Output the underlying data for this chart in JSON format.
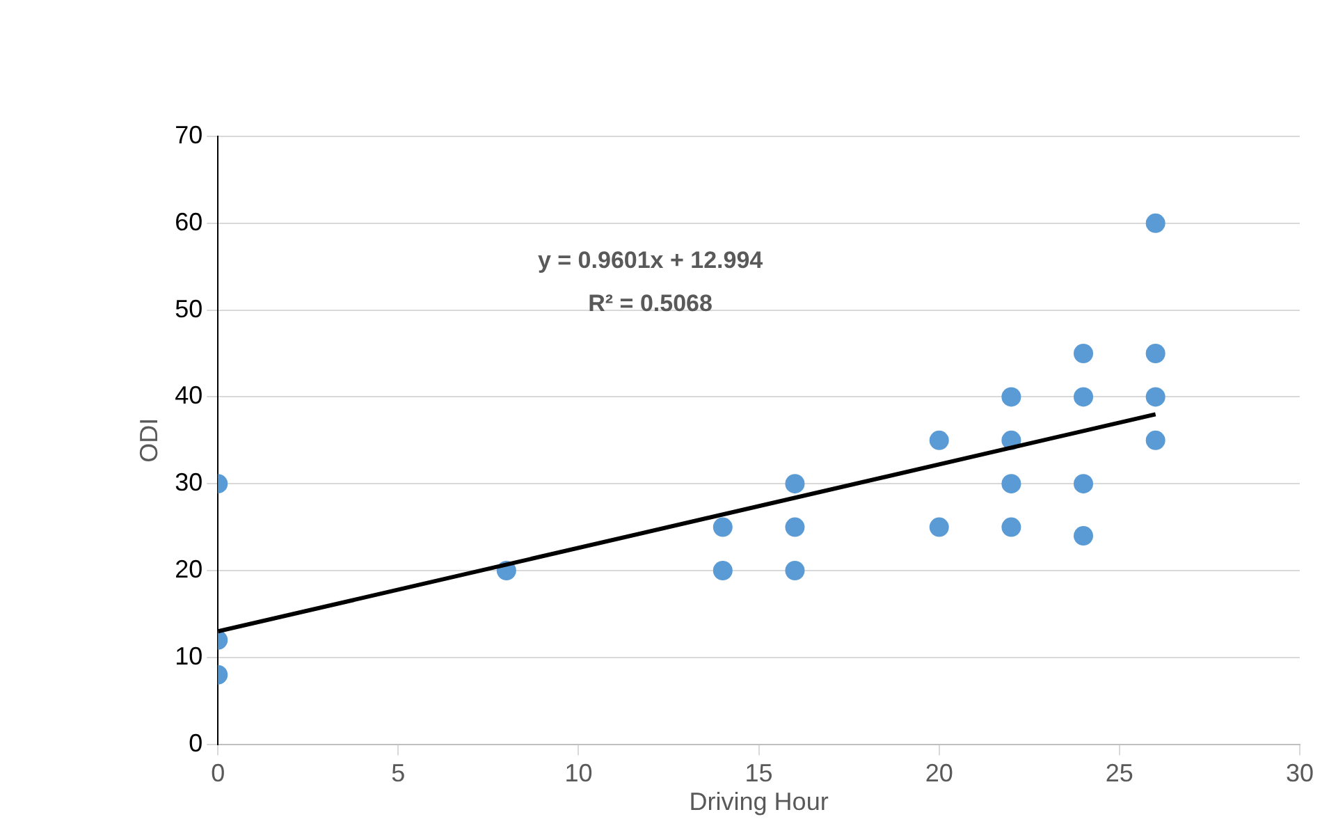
{
  "chart_data": {
    "type": "scatter",
    "xlabel": "Driving Hour",
    "ylabel": "ODI",
    "annotations": [
      "y = 0.9601x + 12.994",
      "R² = 0.5068"
    ],
    "series": [
      {
        "color": "#5b9bd5",
        "marker": "circle",
        "x": [
          0,
          0,
          0,
          8,
          14,
          14,
          16,
          16,
          16,
          20,
          20,
          22,
          22,
          22,
          22,
          24,
          24,
          24,
          24,
          26,
          26,
          26,
          26
        ],
        "values": [
          30,
          12,
          8,
          20,
          25,
          20,
          30,
          25,
          20,
          35,
          25,
          40,
          35,
          30,
          25,
          45,
          40,
          30,
          24,
          60,
          45,
          40,
          35
        ]
      },
      {
        "type": "line",
        "color": "#000000",
        "marker": "none",
        "x": [
          0,
          26
        ],
        "values": [
          13,
          38
        ]
      }
    ],
    "xlim": [
      0,
      30
    ],
    "xticks": [
      0,
      5,
      10,
      15,
      20,
      25,
      30
    ],
    "ylim": [
      0,
      70
    ],
    "yticks": [
      0,
      10,
      20,
      30,
      40,
      50,
      60,
      70
    ],
    "grid": "y",
    "legend": false
  }
}
